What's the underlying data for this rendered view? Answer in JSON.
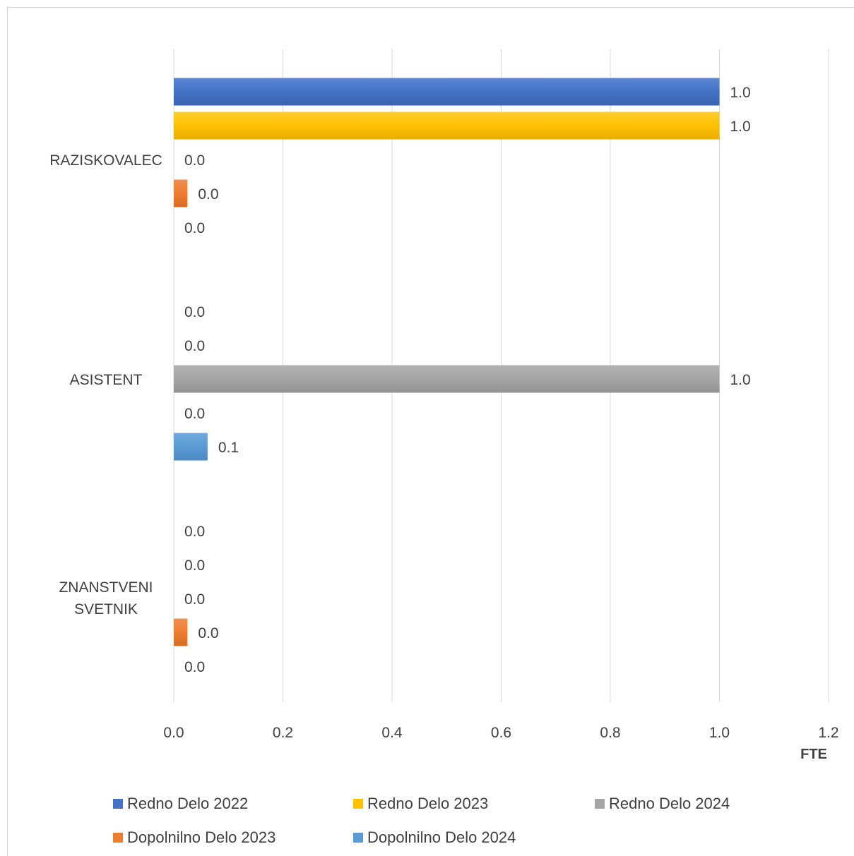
{
  "chart_data": {
    "type": "bar",
    "orientation": "horizontal",
    "categories": [
      "RAZISKOVALEC",
      "ASISTENT",
      "ZNANSTVENI SVETNIK"
    ],
    "series": [
      {
        "name": "Redno Delo 2022",
        "values": [
          1.0,
          0.0,
          0.0
        ],
        "labels": [
          "1.0",
          "0.0",
          "0.0"
        ],
        "color": "#4472c4"
      },
      {
        "name": "Redno Delo 2023",
        "values": [
          1.0,
          0.0,
          0.0
        ],
        "labels": [
          "1.0",
          "0.0",
          "0.0"
        ],
        "color": "#ffc000"
      },
      {
        "name": "Redno Delo 2024",
        "values": [
          0.0,
          1.0,
          0.0
        ],
        "labels": [
          "0.0",
          "1.0",
          "0.0"
        ],
        "color": "#a5a5a5"
      },
      {
        "name": "Dopolnilno Delo 2023",
        "values": [
          0.025,
          0.0,
          0.025
        ],
        "labels": [
          "0.0",
          "0.0",
          "0.0"
        ],
        "color": "#ed7d31"
      },
      {
        "name": "Dopolnilno Delo 2024",
        "values": [
          0.0,
          0.062,
          0.0
        ],
        "labels": [
          "0.0",
          "0.1",
          "0.0"
        ],
        "color": "#5b9bd5"
      }
    ],
    "xlabel": "FTE",
    "xlim": [
      0,
      1.2
    ],
    "xticks": [
      "0.0",
      "0.2",
      "0.4",
      "0.6",
      "0.8",
      "1.0",
      "1.2"
    ],
    "grid": true,
    "legend_position": "bottom"
  }
}
